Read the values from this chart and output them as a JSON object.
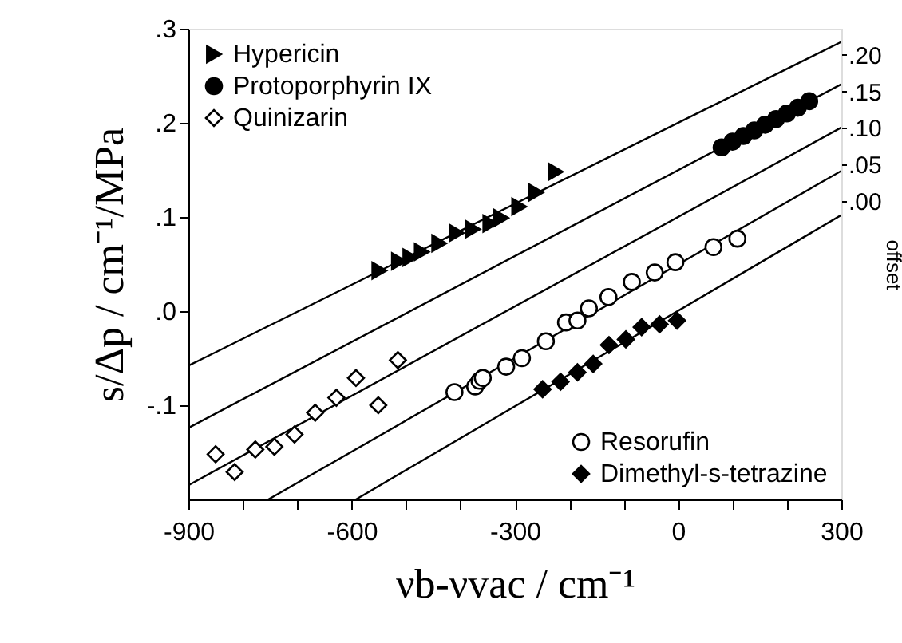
{
  "chart_data": {
    "type": "scatter",
    "xlabel": "νb-νvac / cm⁻¹",
    "ylabel": "s/Δp / cm⁻¹/MPa",
    "y2label": "offset",
    "xlim": [
      -900,
      300
    ],
    "xticks": [
      -900,
      {
        "value": -800,
        "label": null
      },
      {
        "value": -700,
        "label": null
      },
      -600,
      {
        "value": -500,
        "label": null
      },
      {
        "value": -400,
        "label": null
      },
      -300,
      {
        "value": -200,
        "label": null
      },
      {
        "value": -100,
        "label": null
      },
      0,
      {
        "value": 100,
        "label": null
      },
      {
        "value": 200,
        "label": null
      },
      300
    ],
    "ylim": [
      -0.2,
      0.3
    ],
    "yticks": [
      {
        "value": -0.1,
        "label": "-.1"
      },
      {
        "value": 0,
        "label": ".0"
      },
      {
        "value": 0.1,
        "label": ".1"
      },
      {
        "value": 0.2,
        "label": ".2"
      },
      {
        "value": 0.3,
        "label": ".3"
      }
    ],
    "y2lim": [
      -0.41,
      0.236
    ],
    "y2ticks": [
      {
        "value": 0,
        "label": ".00"
      },
      {
        "value": 0.05,
        "label": ".05"
      },
      {
        "value": 0.1,
        "label": ".10"
      },
      {
        "value": 0.15,
        "label": ".15"
      },
      {
        "value": 0.2,
        "label": ".20"
      }
    ],
    "grid": false,
    "legend": [
      "top left",
      "bottom right"
    ],
    "series": [
      {
        "type": "line",
        "color": "#000000",
        "x": [
          -900,
          300
        ],
        "values": [
          -0.058,
          0.286
        ]
      },
      {
        "type": "line",
        "color": "#000000",
        "x": [
          -900,
          300
        ],
        "values": [
          -0.124,
          0.241
        ]
      },
      {
        "type": "line",
        "color": "#000000",
        "x": [
          -900,
          300
        ],
        "values": [
          -0.185,
          0.195
        ]
      },
      {
        "type": "line",
        "color": "#000000",
        "x": [
          -753,
          300
        ],
        "values": [
          -0.2,
          0.149
        ]
      },
      {
        "type": "line",
        "color": "#000000",
        "x": [
          -592,
          300
        ],
        "values": [
          -0.2,
          0.102
        ]
      },
      {
        "name": "Hypericin",
        "marker": "triangle",
        "color": "#000000",
        "x": [
          -549,
          -513,
          -492,
          -471,
          -439,
          -407,
          -377,
          -345,
          -325,
          -292,
          -261,
          -225
        ],
        "values": [
          0.043,
          0.053,
          0.057,
          0.063,
          0.072,
          0.083,
          0.087,
          0.093,
          0.099,
          0.111,
          0.126,
          0.148
        ]
      },
      {
        "name": "Protoporphyrin IX",
        "marker": "circle",
        "color": "#000000",
        "x": [
          80,
          100,
          120,
          140,
          160,
          180,
          200,
          220,
          241
        ],
        "values": [
          0.174,
          0.18,
          0.186,
          0.192,
          0.198,
          0.204,
          0.21,
          0.216,
          0.223
        ]
      },
      {
        "name": "Quinizarin",
        "marker": "diamond",
        "color": "#ffffff",
        "x": [
          -850,
          -815,
          -777,
          -742,
          -705,
          -667,
          -628,
          -592,
          -551,
          -515
        ],
        "values": [
          -0.152,
          -0.171,
          -0.147,
          -0.144,
          -0.131,
          -0.108,
          -0.092,
          -0.071,
          -0.1,
          -0.052
        ]
      },
      {
        "name": "Resorufin",
        "marker": "circle",
        "color": "#ffffff",
        "x": [
          -411,
          -373,
          -365,
          -359,
          -316,
          -287,
          -243,
          -206,
          -185,
          -164,
          -128,
          -85,
          -43,
          -5,
          65,
          109
        ],
        "values": [
          -0.086,
          -0.08,
          -0.074,
          -0.071,
          -0.059,
          -0.05,
          -0.032,
          -0.012,
          -0.01,
          0.003,
          0.015,
          0.031,
          0.041,
          0.052,
          0.068,
          0.077
        ]
      },
      {
        "name": "Dimethyl-s-tetrazine",
        "marker": "diamond",
        "color": "#000000",
        "x": [
          -249,
          -216,
          -185,
          -156,
          -127,
          -96,
          -67,
          -34,
          -2
        ],
        "values": [
          -0.083,
          -0.075,
          -0.065,
          -0.056,
          -0.036,
          -0.03,
          -0.017,
          -0.014,
          -0.01
        ]
      }
    ]
  }
}
